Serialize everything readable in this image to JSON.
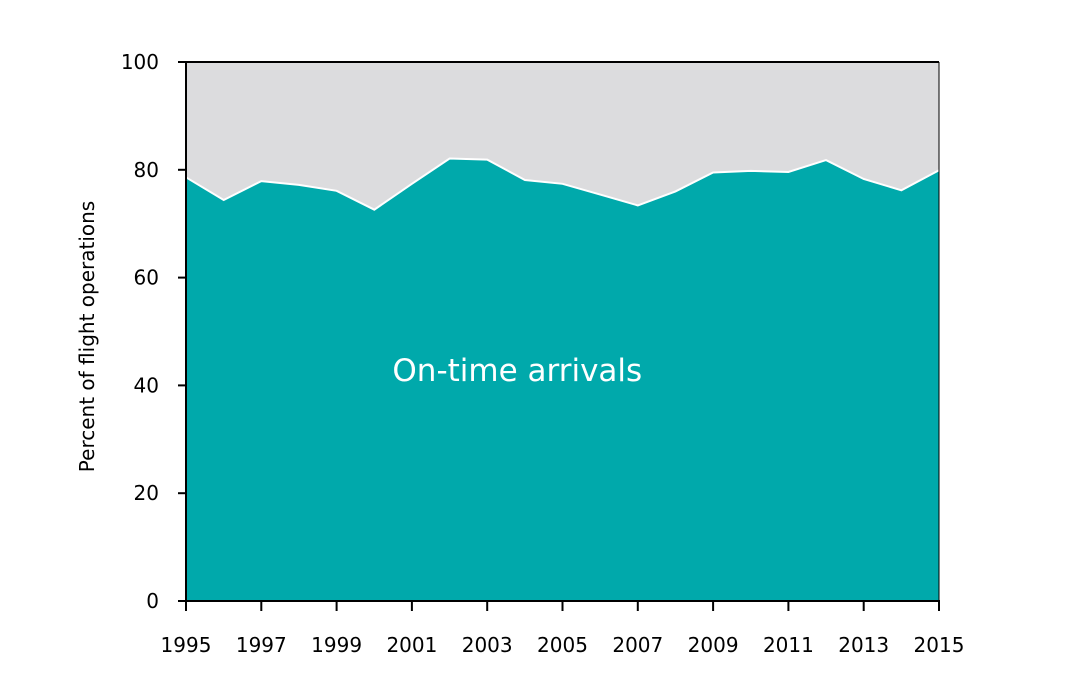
{
  "chart_data": {
    "type": "area",
    "title": "",
    "xlabel": "",
    "ylabel": "Percent of flight operations",
    "xlim": [
      1995,
      2015
    ],
    "ylim": [
      0,
      100
    ],
    "x_ticks": [
      1995,
      1997,
      1999,
      2001,
      2003,
      2005,
      2007,
      2009,
      2011,
      2013,
      2015
    ],
    "y_ticks": [
      0,
      20,
      40,
      60,
      80,
      100
    ],
    "grid": false,
    "series": [
      {
        "name": "On-time arrivals",
        "color": "#00a9ab",
        "x": [
          1995,
          1996,
          1997,
          1998,
          1999,
          2000,
          2001,
          2002,
          2003,
          2004,
          2005,
          2006,
          2007,
          2008,
          2009,
          2010,
          2011,
          2012,
          2013,
          2014,
          2015
        ],
        "values": [
          78.6,
          74.4,
          77.9,
          77.2,
          76.1,
          72.6,
          77.4,
          82.1,
          81.9,
          78.1,
          77.4,
          75.4,
          73.4,
          76.0,
          79.5,
          79.8,
          79.6,
          81.8,
          78.3,
          76.2,
          79.9
        ]
      }
    ],
    "background_fill_color": "#dcdcde"
  }
}
